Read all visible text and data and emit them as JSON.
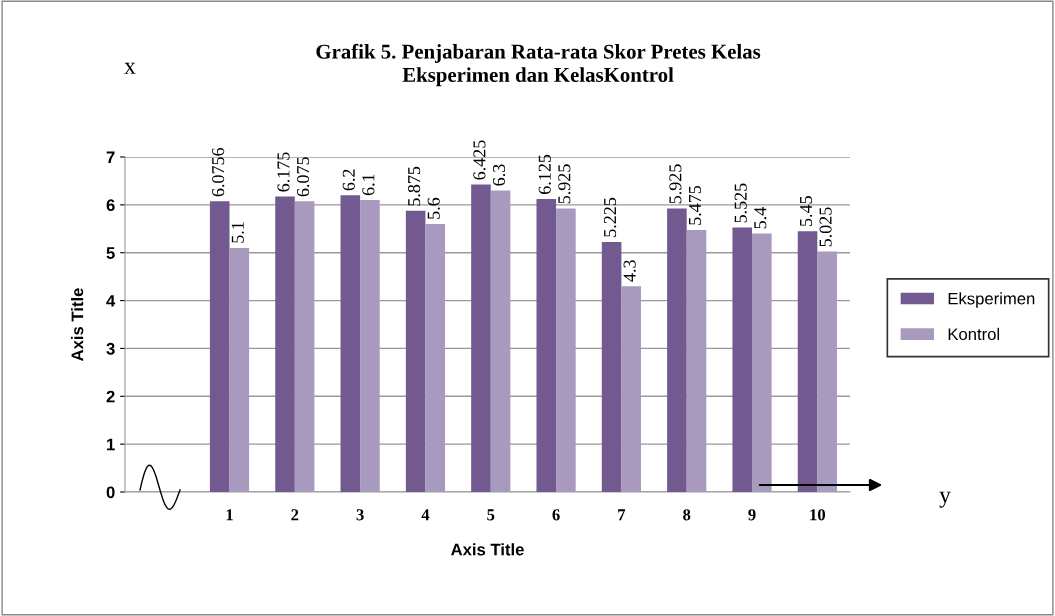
{
  "chart_data": {
    "type": "bar",
    "title": "Grafik 5. Penjabaran Rata-rata Skor Pretes Kelas\nEksperimen dan KelasKontrol",
    "xlabel": "Axis Title",
    "ylabel": "Axis Title",
    "categories": [
      "1",
      "2",
      "3",
      "4",
      "5",
      "6",
      "7",
      "8",
      "9",
      "10"
    ],
    "series": [
      {
        "name": "Eksperimen",
        "color": "#72598f",
        "values": [
          6.0756,
          6.175,
          6.2,
          5.875,
          6.425,
          6.125,
          5.225,
          5.925,
          5.525,
          5.45
        ],
        "value_labels": [
          "6.0756",
          "6.175",
          "6.2",
          "5.875",
          "6.425",
          "6.125",
          "5.225",
          "5.925",
          "5.525",
          "5.45"
        ]
      },
      {
        "name": "Kontrol",
        "color": "#a899bf",
        "values": [
          5.1,
          6.075,
          6.1,
          5.6,
          6.3,
          5.925,
          4.3,
          5.475,
          5.4,
          5.025
        ],
        "value_labels": [
          "5.1",
          "6.075",
          "6.1",
          "5.6",
          "6.3",
          "5.925",
          "4.3",
          "5.475",
          "5.4",
          "5.025"
        ]
      }
    ],
    "ylim": [
      0,
      7
    ],
    "yticks": [
      0,
      1,
      2,
      3,
      4,
      5,
      6,
      7
    ],
    "grid": "y",
    "legend": "right",
    "annotations": [
      "x",
      "y"
    ]
  }
}
